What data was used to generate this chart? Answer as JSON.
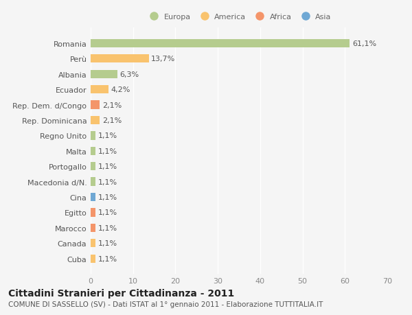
{
  "categories": [
    "Romania",
    "Perù",
    "Albania",
    "Ecuador",
    "Rep. Dem. d/Congo",
    "Rep. Dominicana",
    "Regno Unito",
    "Malta",
    "Portogallo",
    "Macedonia d/N.",
    "Cina",
    "Egitto",
    "Marocco",
    "Canada",
    "Cuba"
  ],
  "values": [
    61.1,
    13.7,
    6.3,
    4.2,
    2.1,
    2.1,
    1.1,
    1.1,
    1.1,
    1.1,
    1.1,
    1.1,
    1.1,
    1.1,
    1.1
  ],
  "labels": [
    "61,1%",
    "13,7%",
    "6,3%",
    "4,2%",
    "2,1%",
    "2,1%",
    "1,1%",
    "1,1%",
    "1,1%",
    "1,1%",
    "1,1%",
    "1,1%",
    "1,1%",
    "1,1%",
    "1,1%"
  ],
  "colors": [
    "#b5cc8e",
    "#f9c36e",
    "#b5cc8e",
    "#f9c36e",
    "#f4956a",
    "#f9c36e",
    "#b5cc8e",
    "#b5cc8e",
    "#b5cc8e",
    "#b5cc8e",
    "#6fa8d4",
    "#f4956a",
    "#f4956a",
    "#f9c36e",
    "#f9c36e"
  ],
  "legend_labels": [
    "Europa",
    "America",
    "Africa",
    "Asia"
  ],
  "legend_colors": [
    "#b5cc8e",
    "#f9c36e",
    "#f4956a",
    "#6fa8d4"
  ],
  "xlim": [
    0,
    70
  ],
  "xticks": [
    0,
    10,
    20,
    30,
    40,
    50,
    60,
    70
  ],
  "title": "Cittadini Stranieri per Cittadinanza - 2011",
  "subtitle": "COMUNE DI SASSELLO (SV) - Dati ISTAT al 1° gennaio 2011 - Elaborazione TUTTITALIA.IT",
  "bg_color": "#f5f5f5",
  "bar_height": 0.55,
  "title_fontsize": 10,
  "subtitle_fontsize": 7.5,
  "label_fontsize": 8,
  "tick_fontsize": 8
}
